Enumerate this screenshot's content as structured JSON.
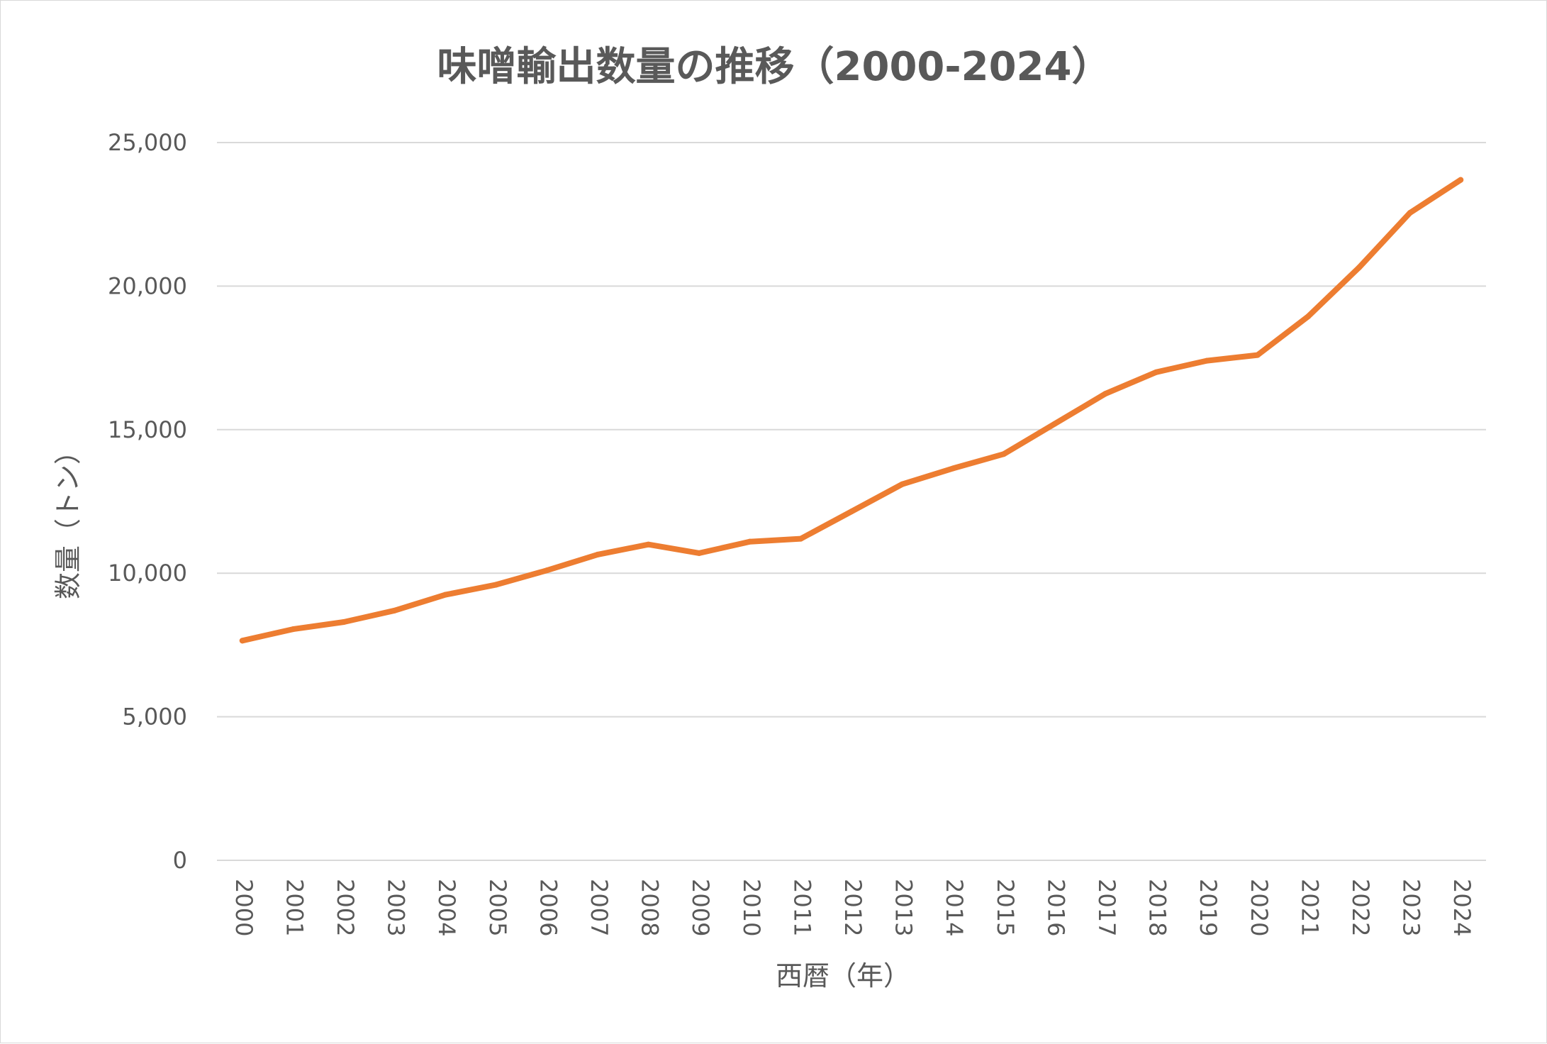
{
  "chart_data": {
    "type": "line",
    "title": "味噌輸出数量の推移（2000-2024）",
    "xlabel": "西暦（年）",
    "ylabel": "数量（トン）",
    "ylim": [
      0,
      25000
    ],
    "yticks": [
      "0",
      "5,000",
      "10,000",
      "15,000",
      "20,000",
      "25,000"
    ],
    "grid": true,
    "legend": "none",
    "categories": [
      "2000",
      "2001",
      "2002",
      "2003",
      "2004",
      "2005",
      "2006",
      "2007",
      "2008",
      "2009",
      "2010",
      "2011",
      "2012",
      "2013",
      "2014",
      "2015",
      "2016",
      "2017",
      "2018",
      "2019",
      "2020",
      "2021",
      "2022",
      "2023",
      "2024"
    ],
    "series": [
      {
        "color": "#ed7d31",
        "values": [
          7650,
          8050,
          8300,
          8700,
          9250,
          9600,
          10100,
          10650,
          11000,
          10700,
          11100,
          11200,
          12150,
          13100,
          13650,
          14150,
          15200,
          16250,
          17000,
          17400,
          17600,
          18950,
          20650,
          22550,
          23700
        ]
      }
    ]
  }
}
